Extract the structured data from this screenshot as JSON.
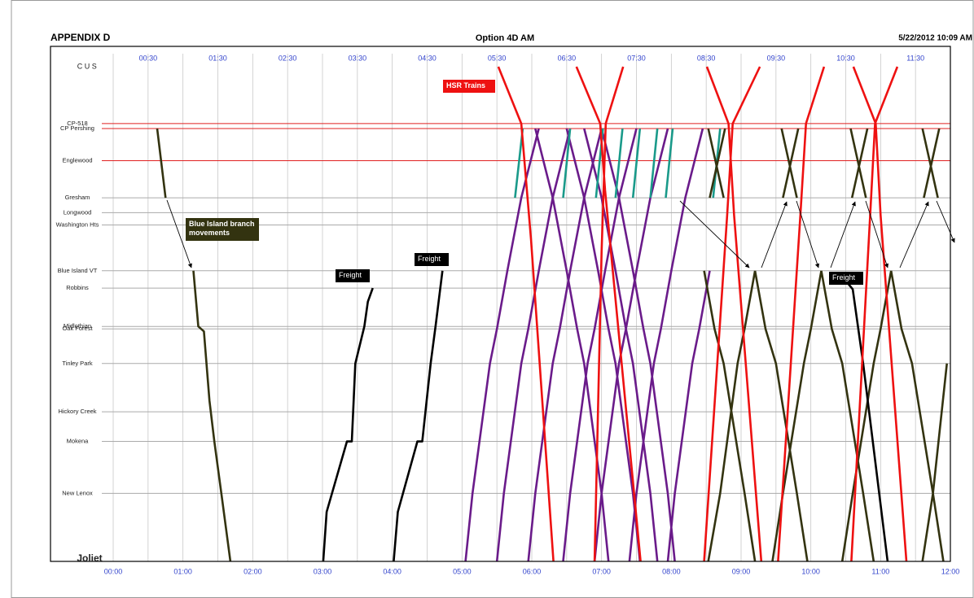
{
  "chart_data": {
    "type": "line",
    "header_left": "APPENDIX D",
    "title": "Option 4D AM",
    "header_right": "5/22/2012 10:09 AM",
    "xlim": [
      0,
      12
    ],
    "xticks": [
      {
        "value": 0,
        "label": "00:00"
      },
      {
        "value": 1,
        "label": "01:00"
      },
      {
        "value": 2,
        "label": "02:00"
      },
      {
        "value": 3,
        "label": "03:00"
      },
      {
        "value": 4,
        "label": "04:00"
      },
      {
        "value": 5,
        "label": "05:00"
      },
      {
        "value": 6,
        "label": "06:00"
      },
      {
        "value": 7,
        "label": "07:00"
      },
      {
        "value": 8,
        "label": "08:00"
      },
      {
        "value": 9,
        "label": "09:00"
      },
      {
        "value": 10,
        "label": "10:00"
      },
      {
        "value": 11,
        "label": "11:00"
      },
      {
        "value": 12,
        "label": "12:00"
      }
    ],
    "x2ticks": [
      {
        "value": 0.5,
        "label": "00:30"
      },
      {
        "value": 1.5,
        "label": "01:30"
      },
      {
        "value": 2.5,
        "label": "02:30"
      },
      {
        "value": 3.5,
        "label": "03:30"
      },
      {
        "value": 4.5,
        "label": "04:30"
      },
      {
        "value": 5.5,
        "label": "05:30"
      },
      {
        "value": 6.5,
        "label": "06:30"
      },
      {
        "value": 7.5,
        "label": "07:30"
      },
      {
        "value": 8.5,
        "label": "08:30"
      },
      {
        "value": 9.5,
        "label": "09:30"
      },
      {
        "value": 10.5,
        "label": "10:30"
      },
      {
        "value": 11.5,
        "label": "11:30"
      }
    ],
    "ylim": [
      0,
      40
    ],
    "y_reversed": true,
    "yticks": [
      {
        "value": 0,
        "label": "CUS"
      },
      {
        "value": 4.6,
        "label": "CP-518"
      },
      {
        "value": 5,
        "label": "CP Pershing"
      },
      {
        "value": 7.6,
        "label": "Englewood"
      },
      {
        "value": 10.6,
        "label": "Gresham"
      },
      {
        "value": 11.8,
        "label": "Longwood"
      },
      {
        "value": 12.8,
        "label": "Washington Hts"
      },
      {
        "value": 16.5,
        "label": "Blue Island VT"
      },
      {
        "value": 17.9,
        "label": "Robbins"
      },
      {
        "value": 21,
        "label": "Midlothian"
      },
      {
        "value": 21.2,
        "label": "Oak Forest"
      },
      {
        "value": 24,
        "label": "Tinley Park"
      },
      {
        "value": 27.9,
        "label": "Hickory Creek"
      },
      {
        "value": 30.3,
        "label": "Mokena"
      },
      {
        "value": 34.5,
        "label": "New Lenox"
      },
      {
        "value": 40,
        "label": "Joliet"
      }
    ],
    "ygrid_colors": [
      "none",
      "#e02020",
      "#e02020",
      "#e02020",
      "#aaaaaa",
      "#aaaaaa",
      "#aaaaaa",
      "#aaaaaa",
      "#aaaaaa",
      "#aaaaaa",
      "#aaaaaa",
      "#aaaaaa",
      "#aaaaaa",
      "#aaaaaa",
      "#aaaaaa",
      "none"
    ],
    "xgrid_color": "#c8c8c8",
    "tick_color": "#3344cc",
    "annotations": [
      {
        "text": "HSR Trains",
        "color": "#ee1111"
      },
      {
        "text": "Blue Island branch movements",
        "color": "#333310"
      },
      {
        "text": "Freight",
        "color": "#000000"
      },
      {
        "text": "Freight",
        "color": "#000000"
      },
      {
        "text": "Freight",
        "color": "#000000"
      }
    ],
    "series": [
      {
        "color": "#6a1b8a",
        "x": [
          5.05,
          5.15,
          5.4,
          5.5,
          5.65,
          5.85,
          6.1,
          null,
          5.5,
          5.6,
          5.85,
          5.95,
          6.1,
          6.3,
          6.55,
          null,
          5.95,
          6.05,
          6.3,
          6.4,
          6.55,
          6.75,
          7.0,
          null,
          6.45,
          6.55,
          6.8,
          6.9,
          7.05,
          7.25,
          7.5,
          null,
          6.9,
          7.0,
          7.25,
          7.35,
          7.5,
          7.7,
          7.95,
          null,
          7.4,
          7.5,
          7.75,
          7.85,
          8.0,
          8.2,
          8.45,
          null,
          7.95,
          8.05,
          8.3,
          8.4,
          8.55,
          null,
          6.05,
          6.3,
          6.5,
          6.65,
          6.75,
          7.0,
          7.1,
          null,
          6.5,
          6.75,
          6.95,
          7.1,
          7.2,
          7.45,
          7.55,
          null,
          6.75,
          7.0,
          7.2,
          7.35,
          7.45,
          7.7,
          7.8,
          null,
          7.0,
          7.25,
          7.45,
          7.6,
          7.7,
          7.95,
          8.05
        ],
        "values": [
          40,
          34.5,
          24,
          21.2,
          16.5,
          10.6,
          5,
          null,
          40,
          34.5,
          24,
          21.2,
          16.5,
          10.6,
          5,
          null,
          40,
          34.5,
          24,
          21.2,
          16.5,
          10.6,
          5,
          null,
          40,
          34.5,
          24,
          21.2,
          16.5,
          10.6,
          5,
          null,
          40,
          34.5,
          24,
          21.2,
          16.5,
          10.6,
          5,
          null,
          40,
          34.5,
          24,
          21.2,
          16.5,
          10.6,
          5,
          null,
          40,
          34.5,
          24,
          21.2,
          16.5,
          null,
          5,
          10.6,
          16.5,
          21.2,
          24,
          34.5,
          40,
          null,
          5,
          10.6,
          16.5,
          21.2,
          24,
          34.5,
          40,
          null,
          5,
          10.6,
          16.5,
          21.2,
          24,
          34.5,
          40,
          null,
          5,
          10.6,
          16.5,
          21.2,
          24,
          34.5,
          40
        ]
      },
      {
        "color": "#1a9a8a",
        "x": [
          5.76,
          5.87,
          null,
          6.45,
          6.55,
          null,
          6.92,
          7.02,
          null,
          7.2,
          7.3,
          null,
          7.45,
          7.55,
          null,
          7.7,
          7.8,
          null,
          7.92,
          8.02,
          null,
          8.6,
          8.7
        ],
        "values": [
          10.6,
          5,
          null,
          10.6,
          5,
          null,
          10.6,
          5,
          null,
          10.6,
          5,
          null,
          10.6,
          5,
          null,
          10.6,
          5,
          null,
          10.6,
          5,
          null,
          10.6,
          5
        ]
      },
      {
        "color": "#333310",
        "x": [
          0.63,
          0.75,
          null,
          1.15,
          1.22,
          1.3,
          1.38,
          1.45,
          1.55,
          1.68,
          null,
          8.53,
          8.75,
          null,
          8.55,
          8.77,
          null,
          9.58,
          9.8,
          null,
          9.6,
          9.82,
          null,
          10.57,
          10.79,
          null,
          10.59,
          10.81,
          null,
          11.6,
          11.82,
          null,
          11.62,
          11.84,
          null,
          8.47,
          8.62,
          8.75,
          9.05,
          9.2,
          null,
          8.53,
          8.7,
          8.95,
          9.05,
          9.2,
          null,
          9.2,
          9.35,
          9.5,
          9.8,
          9.95,
          null,
          9.45,
          9.6,
          9.9,
          10.0,
          10.15,
          null,
          10.15,
          10.3,
          10.45,
          10.75,
          10.9,
          null,
          10.45,
          10.6,
          10.9,
          11.0,
          11.15,
          null,
          11.15,
          11.3,
          11.45,
          11.75,
          11.9,
          null,
          11.6,
          11.75,
          11.95
        ],
        "values": [
          5,
          10.6,
          null,
          16.5,
          21,
          21.4,
          27,
          30.3,
          34.5,
          40,
          null,
          5,
          10.6,
          null,
          10.6,
          5,
          null,
          5,
          10.6,
          null,
          10.6,
          5,
          null,
          5,
          10.6,
          null,
          10.6,
          5,
          null,
          5,
          10.6,
          null,
          10.6,
          5,
          null,
          16.5,
          21.2,
          24,
          34.5,
          40,
          null,
          40,
          34.5,
          24,
          21.2,
          16.5,
          null,
          16.5,
          21.2,
          24,
          34.5,
          40,
          null,
          40,
          34.5,
          24,
          21.2,
          16.5,
          null,
          16.5,
          21.2,
          24,
          34.5,
          40,
          null,
          40,
          34.5,
          24,
          21.2,
          16.5,
          null,
          16.5,
          21.2,
          24,
          34.5,
          40,
          null,
          40,
          34.5,
          24
        ]
      },
      {
        "color": "#000000",
        "x": [
          3.01,
          3.06,
          3.35,
          3.42,
          3.47,
          3.6,
          3.65,
          3.72,
          null,
          4.02,
          4.08,
          4.36,
          4.43,
          4.55,
          4.62,
          4.72,
          null,
          10.5,
          10.6,
          10.75,
          11.1
        ],
        "values": [
          40,
          36,
          30.3,
          30.3,
          24,
          21,
          19,
          17.9,
          null,
          40,
          36,
          30.3,
          30.3,
          24,
          21,
          16.5,
          null,
          17.3,
          18,
          24,
          40
        ]
      },
      {
        "color": "#ee1111",
        "x": [
          5.52,
          5.85,
          5.99,
          6.31,
          null,
          6.64,
          6.98,
          7.05,
          7.56,
          null,
          6.9,
          7.0,
          7.06,
          7.31,
          null,
          8.51,
          8.82,
          8.9,
          9.29,
          null,
          8.47,
          8.8,
          8.88,
          9.27,
          null,
          9.53,
          9.85,
          9.93,
          10.19,
          null,
          10.61,
          10.93,
          11.0,
          11.37,
          null,
          10.58,
          10.85,
          10.92,
          11.24
        ],
        "values": [
          0,
          4.6,
          14,
          40,
          null,
          0,
          4.6,
          10,
          40,
          null,
          40,
          15,
          4.6,
          0,
          null,
          0,
          4.6,
          12,
          40,
          null,
          40,
          12,
          4.6,
          0,
          null,
          40,
          12,
          4.6,
          0,
          null,
          0,
          4.6,
          12,
          40,
          null,
          40,
          12,
          4.6,
          0
        ]
      }
    ]
  }
}
